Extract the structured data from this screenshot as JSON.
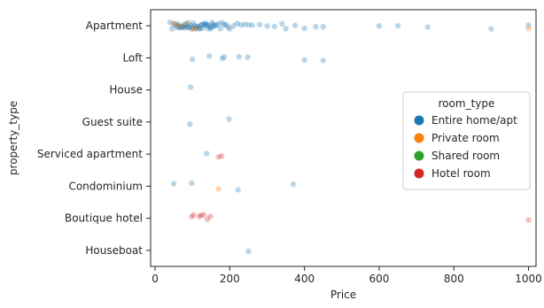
{
  "chart_data": {
    "type": "scatter",
    "title": "",
    "xlabel": "Price",
    "ylabel": "property_type",
    "xlim": [
      -12,
      1020
    ],
    "x_ticks": [
      0,
      200,
      400,
      600,
      800,
      1000
    ],
    "grid": false,
    "categories": [
      "Apartment",
      "Loft",
      "House",
      "Guest suite",
      "Serviced apartment",
      "Condominium",
      "Boutique hotel",
      "Houseboat"
    ],
    "legend": {
      "title": "room_type",
      "placement": "center-right",
      "entries": [
        {
          "name": "Entire home/apt",
          "color": "#1f77b4"
        },
        {
          "name": "Private room",
          "color": "#ff7f0e"
        },
        {
          "name": "Shared room",
          "color": "#2ca02c"
        },
        {
          "name": "Hotel room",
          "color": "#d62728"
        }
      ]
    },
    "series": [
      {
        "name": "Entire home/apt",
        "color": "#1f77b4",
        "points": [
          [
            "Apartment",
            40
          ],
          [
            "Apartment",
            45
          ],
          [
            "Apartment",
            50
          ],
          [
            "Apartment",
            55
          ],
          [
            "Apartment",
            58
          ],
          [
            "Apartment",
            60
          ],
          [
            "Apartment",
            62
          ],
          [
            "Apartment",
            65
          ],
          [
            "Apartment",
            68
          ],
          [
            "Apartment",
            70
          ],
          [
            "Apartment",
            72
          ],
          [
            "Apartment",
            75
          ],
          [
            "Apartment",
            78
          ],
          [
            "Apartment",
            80
          ],
          [
            "Apartment",
            82
          ],
          [
            "Apartment",
            85
          ],
          [
            "Apartment",
            88
          ],
          [
            "Apartment",
            90
          ],
          [
            "Apartment",
            92
          ],
          [
            "Apartment",
            95
          ],
          [
            "Apartment",
            98
          ],
          [
            "Apartment",
            100
          ],
          [
            "Apartment",
            103
          ],
          [
            "Apartment",
            105
          ],
          [
            "Apartment",
            108
          ],
          [
            "Apartment",
            110
          ],
          [
            "Apartment",
            113
          ],
          [
            "Apartment",
            115
          ],
          [
            "Apartment",
            118
          ],
          [
            "Apartment",
            120
          ],
          [
            "Apartment",
            123
          ],
          [
            "Apartment",
            125
          ],
          [
            "Apartment",
            128
          ],
          [
            "Apartment",
            130
          ],
          [
            "Apartment",
            133
          ],
          [
            "Apartment",
            135
          ],
          [
            "Apartment",
            138
          ],
          [
            "Apartment",
            140
          ],
          [
            "Apartment",
            143
          ],
          [
            "Apartment",
            145
          ],
          [
            "Apartment",
            148
          ],
          [
            "Apartment",
            150
          ],
          [
            "Apartment",
            153
          ],
          [
            "Apartment",
            155
          ],
          [
            "Apartment",
            158
          ],
          [
            "Apartment",
            160
          ],
          [
            "Apartment",
            165
          ],
          [
            "Apartment",
            170
          ],
          [
            "Apartment",
            175
          ],
          [
            "Apartment",
            180
          ],
          [
            "Apartment",
            185
          ],
          [
            "Apartment",
            190
          ],
          [
            "Apartment",
            195
          ],
          [
            "Apartment",
            200
          ],
          [
            "Apartment",
            210
          ],
          [
            "Apartment",
            220
          ],
          [
            "Apartment",
            230
          ],
          [
            "Apartment",
            240
          ],
          [
            "Apartment",
            250
          ],
          [
            "Apartment",
            260
          ],
          [
            "Apartment",
            280
          ],
          [
            "Apartment",
            300
          ],
          [
            "Apartment",
            320
          ],
          [
            "Apartment",
            340
          ],
          [
            "Apartment",
            350
          ],
          [
            "Apartment",
            375
          ],
          [
            "Apartment",
            400
          ],
          [
            "Apartment",
            430
          ],
          [
            "Apartment",
            450
          ],
          [
            "Apartment",
            600
          ],
          [
            "Apartment",
            650
          ],
          [
            "Apartment",
            730
          ],
          [
            "Apartment",
            900
          ],
          [
            "Apartment",
            1000
          ],
          [
            "Loft",
            100
          ],
          [
            "Loft",
            145
          ],
          [
            "Loft",
            180
          ],
          [
            "Loft",
            185
          ],
          [
            "Loft",
            225
          ],
          [
            "Loft",
            248
          ],
          [
            "Loft",
            400
          ],
          [
            "Loft",
            450
          ],
          [
            "House",
            95
          ],
          [
            "Guest suite",
            93
          ],
          [
            "Guest suite",
            198
          ],
          [
            "Serviced apartment",
            138
          ],
          [
            "Condominium",
            50
          ],
          [
            "Condominium",
            98
          ],
          [
            "Condominium",
            222
          ],
          [
            "Condominium",
            370
          ],
          [
            "Houseboat",
            250
          ]
        ]
      },
      {
        "name": "Private room",
        "color": "#ff7f0e",
        "points": [
          [
            "Apartment",
            50
          ],
          [
            "Apartment",
            60
          ],
          [
            "Apartment",
            70
          ],
          [
            "Apartment",
            85
          ],
          [
            "Apartment",
            100
          ],
          [
            "Apartment",
            110
          ],
          [
            "Apartment",
            1000
          ],
          [
            "Condominium",
            170
          ]
        ]
      },
      {
        "name": "Shared room",
        "color": "#2ca02c",
        "points": []
      },
      {
        "name": "Hotel room",
        "color": "#d62728",
        "points": [
          [
            "Serviced apartment",
            170
          ],
          [
            "Serviced apartment",
            178
          ],
          [
            "Boutique hotel",
            98
          ],
          [
            "Boutique hotel",
            103
          ],
          [
            "Boutique hotel",
            118
          ],
          [
            "Boutique hotel",
            123
          ],
          [
            "Boutique hotel",
            130
          ],
          [
            "Boutique hotel",
            140
          ],
          [
            "Boutique hotel",
            148
          ],
          [
            "Boutique hotel",
            1000
          ]
        ]
      }
    ]
  }
}
